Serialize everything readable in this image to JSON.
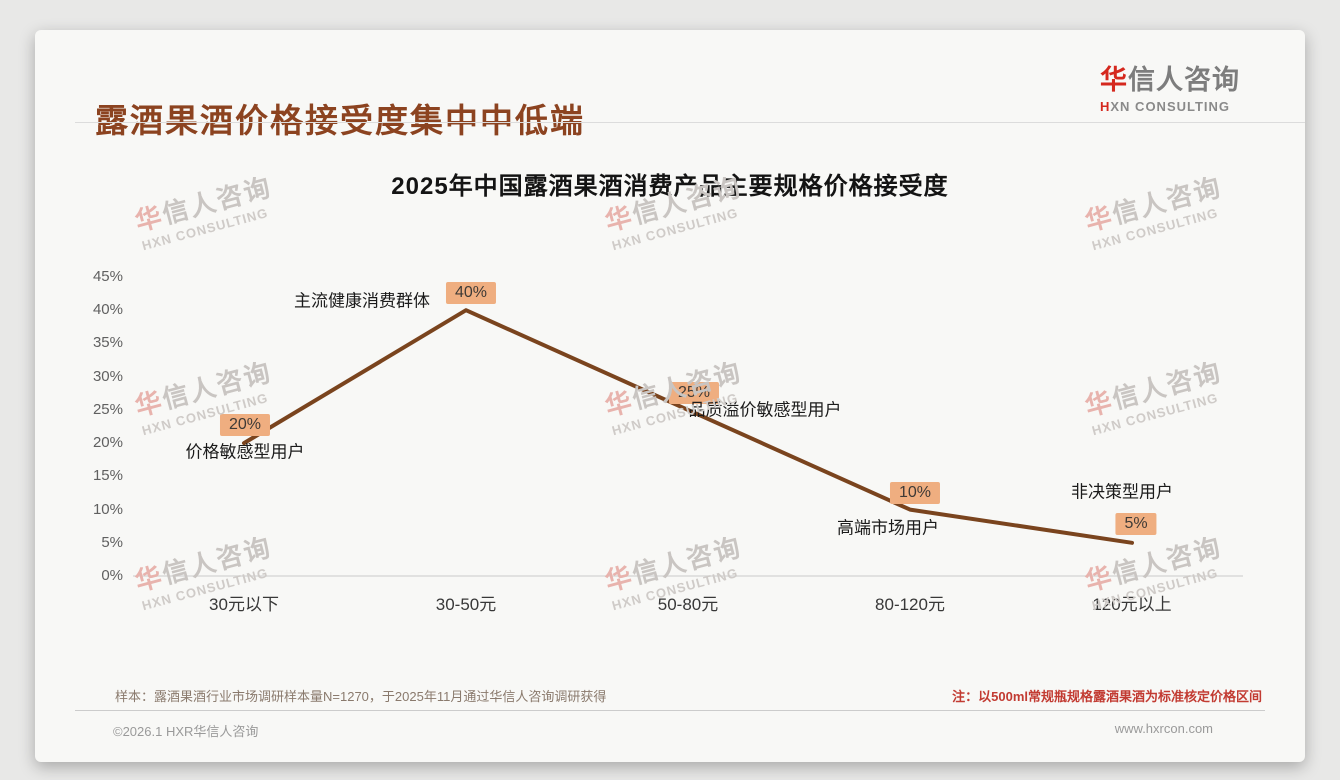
{
  "page": {
    "title": "露酒果酒价格接受度集中中低端",
    "logo": {
      "brand": "华信人咨询",
      "subtitle": "HXN CONSULTING",
      "brand_accent_color": "#d5281e"
    },
    "watermark": {
      "line1": "华信人咨询",
      "line2": "HXN CONSULTING"
    }
  },
  "chart_data": {
    "type": "line",
    "title": "2025年中国露酒果酒消费产品主要规格价格接受度",
    "categories": [
      "30元以下",
      "30-50元",
      "50-80元",
      "80-120元",
      "120元以上"
    ],
    "values": [
      20,
      40,
      25,
      10,
      5
    ],
    "value_labels": [
      "20%",
      "40%",
      "25%",
      "10%",
      "5%"
    ],
    "annotations": [
      "价格敏感型用户",
      "主流健康消费群体",
      "品质溢价敏感型用户",
      "高端市场用户",
      "非决策型用户"
    ],
    "xlabel": "",
    "ylabel": "",
    "ylim": [
      0,
      45
    ],
    "ytick_step": 5,
    "yticks": [
      "0%",
      "5%",
      "10%",
      "15%",
      "20%",
      "25%",
      "30%",
      "35%",
      "40%",
      "45%"
    ],
    "grid": false,
    "legend_position": "none",
    "line_color": "#7A441E",
    "value_label_bg": "#EFAE80"
  },
  "footer": {
    "sample_note": "样本：露酒果酒行业市场调研样本量N=1270，于2025年11月通过华信人咨询调研获得",
    "price_note": "注：以500ml常规瓶规格露酒果酒为标准核定价格区间",
    "copyright": "©2026.1 HXR华信人咨询",
    "website": "www.hxrcon.com"
  }
}
